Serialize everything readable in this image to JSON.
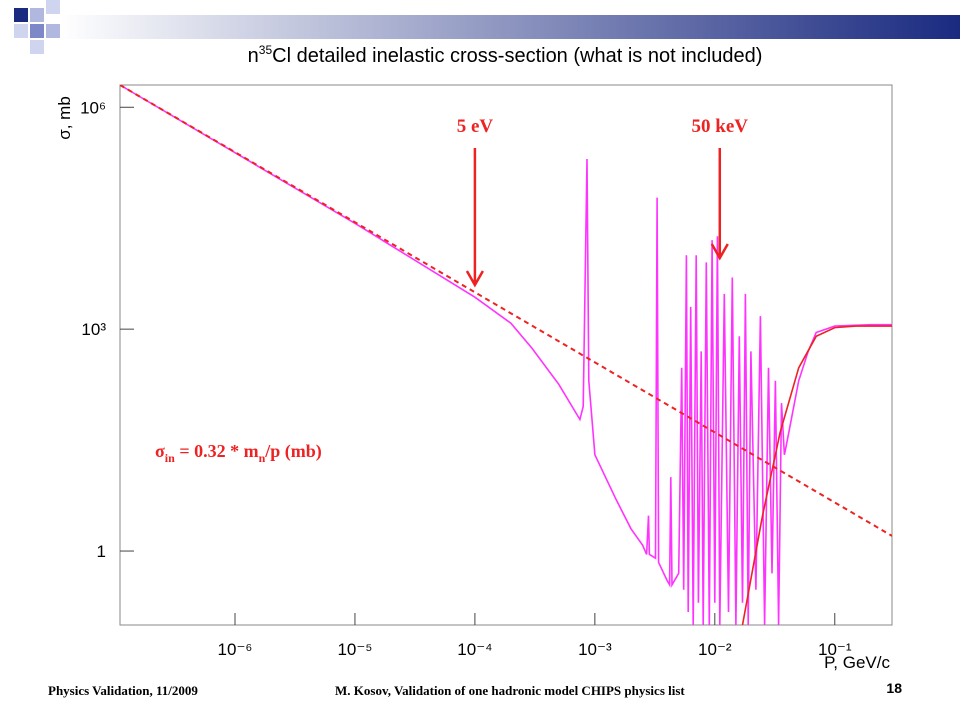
{
  "chart_data": {
    "type": "line",
    "title": [
      "n",
      "35",
      "Cl detailed inelastic cross-section (what is not included)"
    ],
    "x_label": "P, GeV/c",
    "y_label": "σ, mb",
    "xscale": "log",
    "yscale": "log",
    "xlim": [
      1.1e-07,
      0.3
    ],
    "ylim": [
      0.1,
      2000000
    ],
    "xticks": [
      {
        "value": 1e-06,
        "label": "10⁻⁶"
      },
      {
        "value": 1e-05,
        "label": "10⁻⁵"
      },
      {
        "value": 0.0001,
        "label": "10⁻⁴"
      },
      {
        "value": 0.001,
        "label": "10⁻³"
      },
      {
        "value": 0.01,
        "label": "10⁻²"
      },
      {
        "value": 0.1,
        "label": "10⁻¹"
      }
    ],
    "yticks": [
      {
        "value": 1000000,
        "label": "10⁶"
      },
      {
        "value": 1000,
        "label": "10³"
      },
      1
    ],
    "series": [
      {
        "color": "#ff33ff",
        "dashed": false,
        "x": [
          1.1e-07,
          1e-05,
          0.0001,
          0.0002,
          0.0003,
          0.0005,
          0.00075,
          0.0008,
          0.00086,
          0.00089,
          0.001,
          0.0015,
          0.002,
          0.0025,
          0.0027,
          0.0028,
          0.00285,
          0.0032,
          0.0033,
          0.0034,
          0.004,
          0.0042,
          0.0043,
          0.0044,
          0.005,
          0.0053,
          0.0055,
          0.0058,
          0.006,
          0.0063,
          0.0066,
          0.007,
          0.0073,
          0.0077,
          0.008,
          0.0085,
          0.009,
          0.0095,
          0.01,
          0.0105,
          0.011,
          0.012,
          0.013,
          0.014,
          0.015,
          0.016,
          0.017,
          0.018,
          0.019,
          0.02,
          0.022,
          0.024,
          0.026,
          0.028,
          0.03,
          0.032,
          0.034,
          0.036,
          0.038,
          0.04,
          0.05,
          0.06,
          0.07,
          0.1,
          0.2,
          0.3
        ],
        "values": [
          2000000,
          27000,
          2700,
          1200,
          550,
          180,
          60,
          90,
          200000,
          200,
          20,
          5,
          2,
          1.2,
          0.9,
          3,
          0.9,
          0.8,
          60000,
          0.7,
          0.4,
          0.35,
          10,
          0.35,
          0.5,
          300,
          0.3,
          10000,
          0.15,
          2000,
          0.1,
          10000,
          0.2,
          500,
          0.1,
          8000,
          0.1,
          16000,
          0.2,
          18000,
          0.1,
          3000,
          0.15,
          5000,
          0.1,
          800,
          0.2,
          3000,
          0.1,
          500,
          0.3,
          1500,
          0.1,
          300,
          0.5,
          200,
          0.1,
          100,
          20,
          30,
          200,
          500,
          900,
          1100,
          1150,
          1150
        ]
      },
      {
        "color": "#ee2222",
        "dashed": true,
        "x": [
          1.1e-07,
          0.3
        ],
        "values": [
          2000000,
          1.6
        ]
      },
      {
        "color": "#ee2222",
        "dashed": false,
        "x": [
          0.017,
          0.025,
          0.035,
          0.05,
          0.07,
          0.1,
          0.15,
          0.3
        ],
        "values": [
          0.1,
          3,
          40,
          300,
          800,
          1050,
          1100,
          1100
        ]
      }
    ],
    "annotations": [
      {
        "text": "5 eV",
        "x": 0.0001
      },
      {
        "text": "50 keV",
        "x": 0.011
      }
    ],
    "formula": [
      "σ",
      "in",
      " = 0.32 * m",
      "n",
      "/p (mb)"
    ]
  },
  "footer": {
    "left": "Physics Validation, 11/2009",
    "center": "M. Kosov,  Validation of one hadronic model CHIPS physics list",
    "page": "18"
  }
}
